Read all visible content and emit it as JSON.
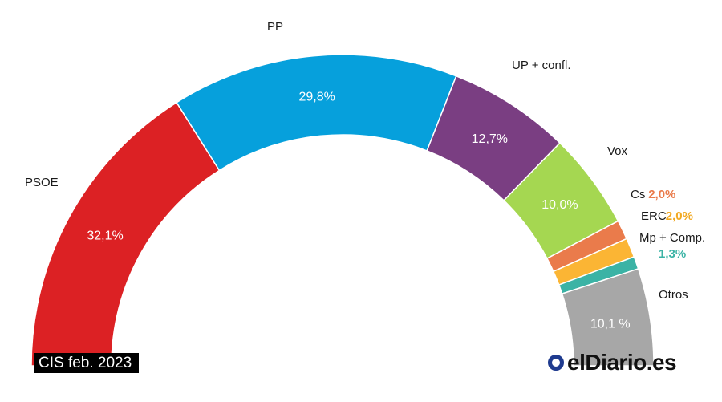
{
  "chart_data": {
    "type": "pie",
    "subtype": "half-donut",
    "slices": [
      {
        "label": "PSOE",
        "value": 32.1,
        "value_text": "32,1%",
        "color": "#dc2124"
      },
      {
        "label": "PP",
        "value": 29.8,
        "value_text": "29,8%",
        "color": "#06a0dc"
      },
      {
        "label": "UP + confl.",
        "value": 12.7,
        "value_text": "12,7%",
        "color": "#7a3e82"
      },
      {
        "label": "Vox",
        "value": 10.0,
        "value_text": "10,0%",
        "color": "#a5d751"
      },
      {
        "label": "Cs",
        "value": 2.0,
        "value_text": "2,0%",
        "color": "#ea7b4b"
      },
      {
        "label": "ERC",
        "value": 2.0,
        "value_text": "2,0%",
        "color": "#fbb534"
      },
      {
        "label": "Mp + Comp.",
        "value": 1.3,
        "value_text": "1,3%",
        "color": "#3bb3a5"
      },
      {
        "label": "Otros",
        "value": 10.1,
        "value_text": "10,1 %",
        "color": "#a7a7a7"
      }
    ]
  },
  "footer": {
    "source": "CIS feb. 2023",
    "brand": "elDiario.es",
    "brand_icon": "eldiario-logo-icon",
    "brand_color": "#1f3b8f"
  }
}
